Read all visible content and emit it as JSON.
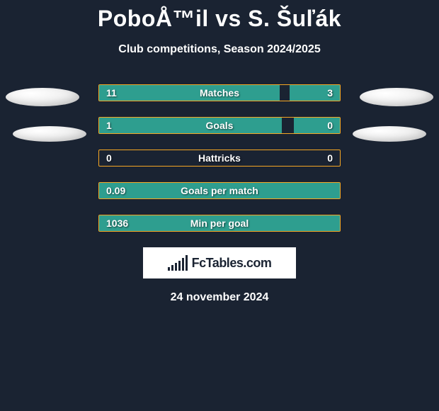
{
  "title": "PoboÅ™il vs S. Šuľák",
  "subtitle": "Club competitions, Season 2024/2025",
  "date": "24 november 2024",
  "logo_text": "FcTables.com",
  "colors": {
    "background": "#1a2332",
    "bar_border": "#f5a623",
    "bar_fill": "#2e9e8f",
    "text": "#ffffff",
    "logo_bg": "#ffffff",
    "logo_fg": "#1a2332"
  },
  "stats": [
    {
      "label": "Matches",
      "left_val": "11",
      "right_val": "3",
      "left_pct": 75,
      "right_pct": 21
    },
    {
      "label": "Goals",
      "left_val": "1",
      "right_val": "0",
      "left_pct": 76,
      "right_pct": 19
    },
    {
      "label": "Hattricks",
      "left_val": "0",
      "right_val": "0",
      "left_pct": 0,
      "right_pct": 0
    },
    {
      "label": "Goals per match",
      "left_val": "0.09",
      "right_val": "",
      "left_pct": 100,
      "right_pct": 0
    },
    {
      "label": "Min per goal",
      "left_val": "1036",
      "right_val": "",
      "left_pct": 100,
      "right_pct": 0
    }
  ],
  "logo_bar_heights": [
    5,
    8,
    11,
    14,
    18,
    22
  ]
}
